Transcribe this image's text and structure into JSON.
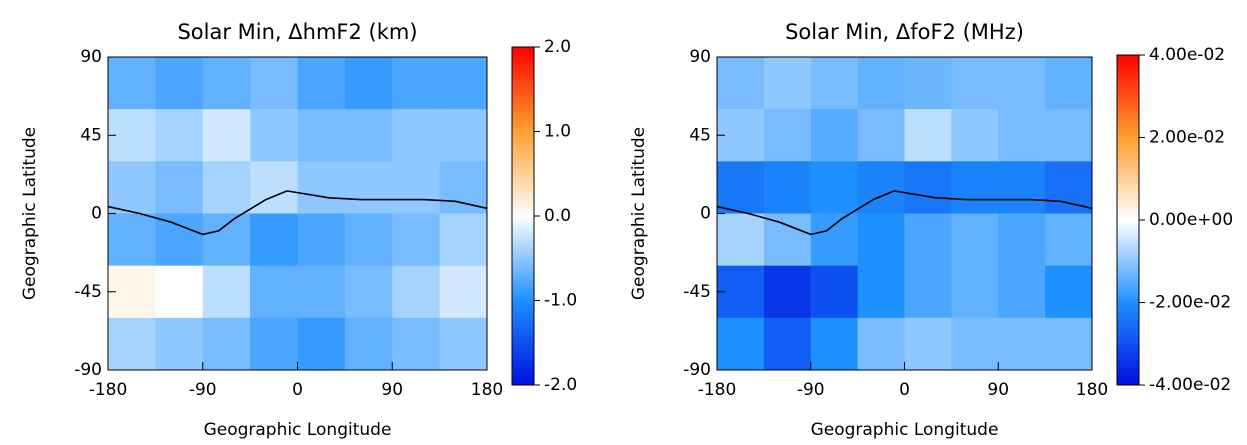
{
  "chart_data": [
    {
      "type": "heatmap",
      "title": "Solar Min, ΔhmF2 (km)",
      "xlabel": "Geographic Longitude",
      "ylabel": "Geographic Latitude",
      "xlim": [
        -180,
        180
      ],
      "ylim": [
        -90,
        90
      ],
      "xticks": [
        -180,
        -90,
        0,
        90,
        180
      ],
      "yticks": [
        90,
        45,
        0,
        -45,
        -90
      ],
      "x": [
        -157.5,
        -112.5,
        -67.5,
        -22.5,
        22.5,
        67.5,
        112.5,
        157.5
      ],
      "y": [
        75,
        45,
        15,
        -15,
        -45,
        -75
      ],
      "z": [
        [
          -0.7,
          -0.8,
          -0.7,
          -0.6,
          -0.8,
          -0.9,
          -0.8,
          -0.8
        ],
        [
          -0.3,
          -0.4,
          -0.2,
          -0.5,
          -0.6,
          -0.6,
          -0.5,
          -0.5
        ],
        [
          -0.5,
          -0.6,
          -0.4,
          -0.3,
          -0.5,
          -0.5,
          -0.5,
          -0.6
        ],
        [
          -0.7,
          -0.8,
          -0.7,
          -0.9,
          -0.8,
          -0.7,
          -0.6,
          -0.4
        ],
        [
          0.1,
          0.0,
          -0.3,
          -0.7,
          -0.7,
          -0.6,
          -0.4,
          -0.2
        ],
        [
          -0.4,
          -0.5,
          -0.6,
          -0.8,
          -0.9,
          -0.7,
          -0.6,
          -0.5
        ]
      ],
      "clim": [
        -2,
        2
      ],
      "cticks": [
        {
          "value": 2,
          "label": "2.0"
        },
        {
          "value": 1,
          "label": "1.0"
        },
        {
          "value": 0,
          "label": "0.0"
        },
        {
          "value": -1,
          "label": "-1.0"
        },
        {
          "value": -2,
          "label": "-2.0"
        }
      ],
      "colormap": [
        "#0010e0",
        "#1e90ff",
        "#ffffff",
        "#ffa030",
        "#ff0000"
      ],
      "line": {
        "color": "#000000",
        "x": [
          -180,
          -150,
          -120,
          -90,
          -75,
          -60,
          -30,
          -10,
          0,
          30,
          60,
          90,
          120,
          150,
          180
        ],
        "y": [
          4,
          0,
          -5,
          -12,
          -10,
          -3,
          8,
          13,
          12,
          9,
          8,
          8,
          8,
          7,
          3
        ]
      }
    },
    {
      "type": "heatmap",
      "title": "Solar Min, ΔfoF2 (MHz)",
      "xlabel": "Geographic Longitude",
      "ylabel": "Geographic Latitude",
      "xlim": [
        -180,
        180
      ],
      "ylim": [
        -90,
        90
      ],
      "xticks": [
        -180,
        -90,
        0,
        90,
        180
      ],
      "yticks": [
        90,
        45,
        0,
        -45,
        -90
      ],
      "x": [
        -157.5,
        -112.5,
        -67.5,
        -22.5,
        22.5,
        67.5,
        112.5,
        157.5
      ],
      "y": [
        75,
        45,
        15,
        -15,
        -45,
        -75
      ],
      "z": [
        [
          -0.012,
          -0.01,
          -0.012,
          -0.014,
          -0.013,
          -0.012,
          -0.012,
          -0.014
        ],
        [
          -0.01,
          -0.012,
          -0.015,
          -0.012,
          -0.006,
          -0.01,
          -0.012,
          -0.012
        ],
        [
          -0.024,
          -0.022,
          -0.02,
          -0.022,
          -0.024,
          -0.022,
          -0.022,
          -0.025
        ],
        [
          -0.008,
          -0.012,
          -0.018,
          -0.02,
          -0.016,
          -0.014,
          -0.016,
          -0.014
        ],
        [
          -0.028,
          -0.034,
          -0.03,
          -0.02,
          -0.016,
          -0.014,
          -0.016,
          -0.02
        ],
        [
          -0.02,
          -0.028,
          -0.02,
          -0.012,
          -0.01,
          -0.012,
          -0.012,
          -0.012
        ]
      ],
      "clim": [
        -0.04,
        0.04
      ],
      "cticks": [
        {
          "value": 0.04,
          "label": "4.00e-02"
        },
        {
          "value": 0.02,
          "label": "2.00e-02"
        },
        {
          "value": 0,
          "label": "0.00e+00"
        },
        {
          "value": -0.02,
          "label": "-2.00e-02"
        },
        {
          "value": -0.04,
          "label": "-4.00e-02"
        }
      ],
      "colormap": [
        "#0010e0",
        "#1e90ff",
        "#ffffff",
        "#ffa030",
        "#ff0000"
      ],
      "line": {
        "color": "#000000",
        "x": [
          -180,
          -150,
          -120,
          -90,
          -75,
          -60,
          -30,
          -10,
          0,
          30,
          60,
          90,
          120,
          150,
          180
        ],
        "y": [
          4,
          0,
          -5,
          -12,
          -10,
          -3,
          8,
          13,
          12,
          9,
          8,
          8,
          8,
          7,
          3
        ]
      }
    }
  ]
}
